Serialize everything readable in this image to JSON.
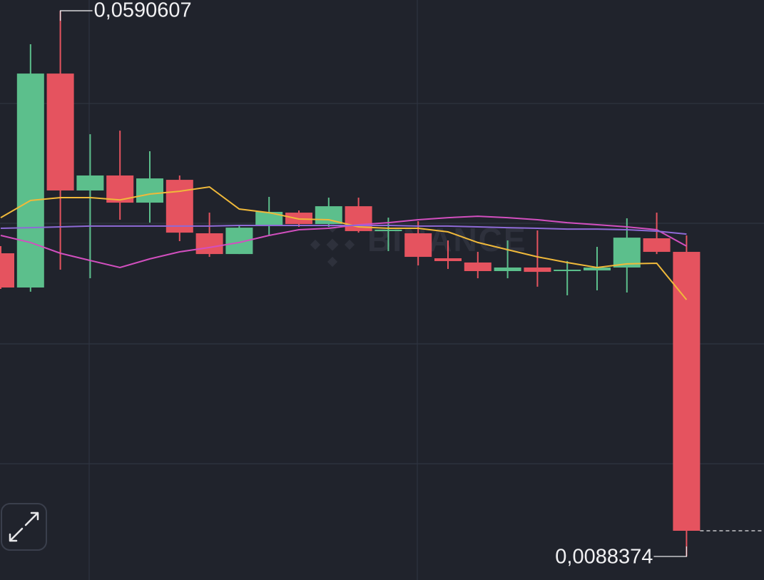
{
  "chart_data": {
    "type": "candlestick",
    "watermark": "BINANCE",
    "ylim": [
      0.00667,
      0.06005
    ],
    "yticks": [
      0.050526,
      0.039497,
      0.028401,
      0.017372
    ],
    "grid": true,
    "up_color": "#5cbf8c",
    "down_color": "#e5535f",
    "open": [
      0.03674,
      0.03359,
      0.05328,
      0.04252,
      0.0439,
      0.0414,
      0.0435,
      0.03858,
      0.03667,
      0.0393,
      0.04048,
      0.03943,
      0.04107,
      0.03878,
      0.03858,
      0.03628,
      0.03589,
      0.0351,
      0.03543,
      0.0351,
      0.03516,
      0.03543,
      0.03812,
      0.03687
    ],
    "high": [
      0.0374,
      0.05598,
      0.0590607,
      0.0477,
      0.04803,
      0.04613,
      0.0439,
      0.04048,
      0.03924,
      0.04193,
      0.04068,
      0.04186,
      0.04186,
      0.04002,
      0.03969,
      0.03792,
      0.03687,
      0.03792,
      0.03884,
      0.03603,
      0.03733,
      0.03996,
      0.04048,
      0.03838
    ],
    "low": [
      0.03346,
      0.0332,
      0.03523,
      0.03444,
      0.03983,
      0.03956,
      0.03786,
      0.03641,
      0.03667,
      0.03838,
      0.03917,
      0.03917,
      0.03864,
      0.03694,
      0.03562,
      0.0353,
      0.03444,
      0.03444,
      0.03366,
      0.03287,
      0.03333,
      0.03313,
      0.03667,
      0.0088374
    ],
    "close": [
      0.03359,
      0.05328,
      0.04252,
      0.0439,
      0.0414,
      0.04363,
      0.03864,
      0.03667,
      0.0391,
      0.04055,
      0.03943,
      0.04107,
      0.03878,
      0.03891,
      0.03641,
      0.03602,
      0.0351,
      0.03543,
      0.03503,
      0.03523,
      0.03543,
      0.03818,
      0.03687,
      0.0112
    ],
    "lines": [
      {
        "color": "#f0b93a",
        "values": [
          0.04002,
          0.0416,
          0.04186,
          0.04186,
          0.04165,
          0.04219,
          0.04245,
          0.04285,
          0.04081,
          0.04048,
          0.03989,
          0.03983,
          0.03917,
          0.03904,
          0.03904,
          0.03871,
          0.03773,
          0.03707,
          0.03641,
          0.03589,
          0.03543,
          0.03576,
          0.03582,
          0.03247
        ]
      },
      {
        "color": "#d24fbf",
        "values": [
          0.03838,
          0.03773,
          0.03674,
          0.03608,
          0.03543,
          0.03622,
          0.03687,
          0.03727,
          0.03773,
          0.03838,
          0.03891,
          0.03904,
          0.03937,
          0.03956,
          0.03983,
          0.04002,
          0.04015,
          0.04002,
          0.03983,
          0.03956,
          0.03937,
          0.03917,
          0.03891,
          0.0374
        ]
      },
      {
        "color": "#8e6ad6",
        "values": [
          0.03904,
          0.0391,
          0.03917,
          0.03924,
          0.03924,
          0.03924,
          0.03924,
          0.03924,
          0.0393,
          0.0393,
          0.0393,
          0.0393,
          0.0393,
          0.0393,
          0.03924,
          0.03924,
          0.03917,
          0.0391,
          0.03904,
          0.03897,
          0.03897,
          0.03891,
          0.03878,
          0.03851
        ]
      }
    ],
    "annotations": [
      {
        "value": 0.0590607,
        "label": "0,0590607"
      },
      {
        "value": 0.0088374,
        "label": "0,0088374"
      }
    ]
  }
}
